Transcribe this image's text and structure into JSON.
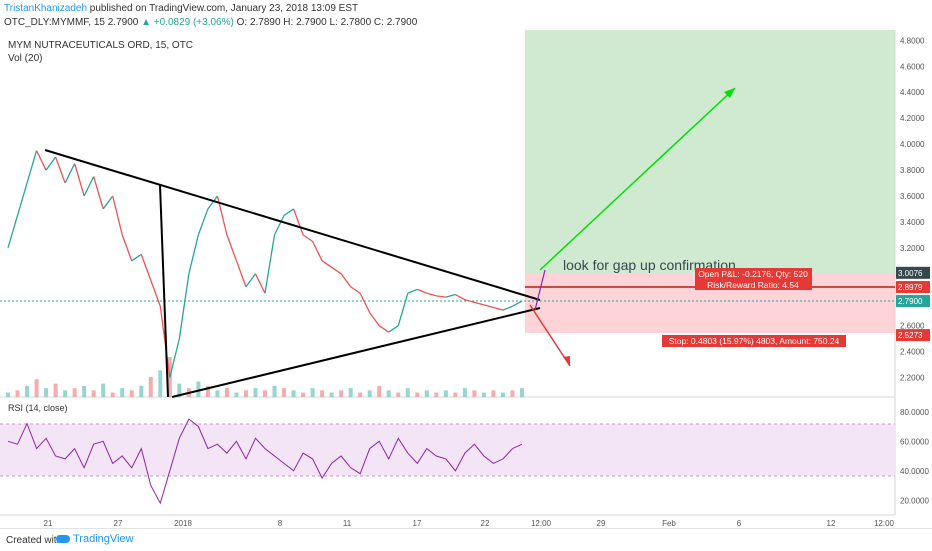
{
  "header": {
    "author": "TristanKhanizadeh",
    "published": " published on TradingView.com, January 23, 2018 13:09 EST",
    "symbol_line": "OTC_DLY:MYMMF, 15  2.7900",
    "change": "▲ +0.0829 (+3.06%)",
    "ohlc": "O: 2.7890  H: 2.7900  L: 2.7800  C: 2.7900"
  },
  "chart": {
    "legend_title": "MYM NUTRACEUTICALS ORD, 15, OTC",
    "legend_vol": "Vol (20)",
    "rsi_label": "RSI (14, close)",
    "annotation": "look for gap up confirmation",
    "open_pnl": "Open P&L: -0.2176, Qty: 520",
    "risk_reward": "Risk/Reward Ratio: 4.54",
    "stop_label": "Stop: 0.4803 (15.97%) 4803, Amount: 750.24",
    "colors": {
      "profit_zone": "#c8e6c9",
      "loss_zone": "#ffcdd2",
      "price_up": "#26a69a",
      "price_down": "#ef5350",
      "rsi_line": "#8e24aa",
      "rsi_band": "#f3e5f5",
      "arrow_up": "#00e000",
      "arrow_down": "#e53935",
      "label_red": "#e53935"
    }
  },
  "chart_data": {
    "type": "line",
    "y_axis_ticks": [
      "4.8000",
      "4.6000",
      "4.4000",
      "4.2000",
      "4.0000",
      "3.8000",
      "3.6000",
      "3.4000",
      "3.2000",
      "3.0000",
      "2.8000",
      "2.6000",
      "2.4000",
      "2.2000"
    ],
    "ylim": [
      2.05,
      4.88
    ],
    "x_tick_labels": [
      "21",
      "27",
      "2018",
      "8",
      "11",
      "17",
      "22",
      "12:00",
      "29",
      "Feb",
      "6",
      "12",
      "12:00"
    ],
    "price_tags": [
      {
        "label": "3.0076",
        "value": 3.0076,
        "style": "dark"
      },
      {
        "label": "2.8979",
        "value": 2.8979,
        "style": "red"
      },
      {
        "label": "2.7900",
        "value": 2.79,
        "style": "green"
      },
      {
        "label": "2.5273",
        "value": 2.5273,
        "style": "red"
      }
    ],
    "price_path": [
      3.2,
      3.45,
      3.7,
      3.95,
      3.8,
      3.9,
      3.7,
      3.85,
      3.6,
      3.75,
      3.5,
      3.6,
      3.3,
      3.1,
      3.15,
      2.95,
      2.75,
      2.2,
      2.5,
      3.0,
      3.3,
      3.5,
      3.6,
      3.3,
      3.1,
      2.9,
      3.0,
      2.85,
      3.3,
      3.45,
      3.5,
      3.3,
      3.25,
      3.1,
      3.05,
      3.0,
      2.9,
      2.85,
      2.7,
      2.6,
      2.55,
      2.6,
      2.85,
      2.88,
      2.85,
      2.83,
      2.82,
      2.84,
      2.8,
      2.78,
      2.76,
      2.74,
      2.72,
      2.75,
      2.79
    ],
    "rsi_ticks": [
      "80.0000",
      "60.0000",
      "40.0000",
      "20.0000"
    ],
    "rsi_ylim": [
      10,
      90
    ],
    "rsi_path": [
      60,
      58,
      72,
      55,
      62,
      50,
      48,
      55,
      42,
      58,
      60,
      45,
      50,
      42,
      55,
      30,
      18,
      40,
      62,
      75,
      70,
      55,
      58,
      52,
      60,
      48,
      62,
      55,
      50,
      45,
      40,
      52,
      48,
      35,
      45,
      50,
      42,
      38,
      55,
      60,
      48,
      62,
      52,
      45,
      55,
      50,
      48,
      40,
      52,
      58,
      50,
      45,
      48,
      55,
      58
    ],
    "volume_path": [
      2,
      3,
      5,
      8,
      4,
      6,
      3,
      4,
      5,
      3,
      6,
      2,
      4,
      3,
      5,
      9,
      12,
      18,
      6,
      4,
      7,
      5,
      3,
      4,
      2,
      3,
      4,
      3,
      5,
      4,
      3,
      2,
      4,
      3,
      2,
      3,
      4,
      2,
      3,
      5,
      3,
      2,
      4,
      2,
      3,
      2,
      3,
      2,
      4,
      3,
      2,
      3,
      2,
      3,
      4
    ]
  }
}
